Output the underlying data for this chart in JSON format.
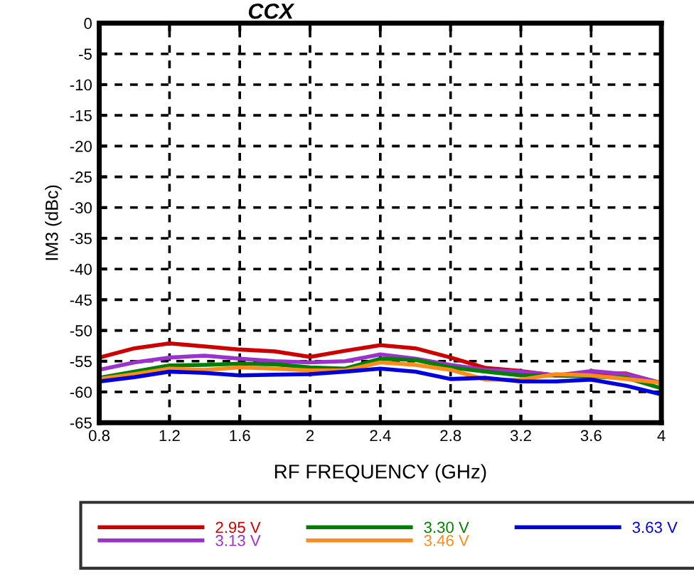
{
  "chart_data": {
    "type": "line",
    "title": "CCX",
    "xlabel": "RF FREQUENCY (GHz)",
    "ylabel": "IM3 (dBc)",
    "x": [
      0.8,
      1.0,
      1.2,
      1.4,
      1.6,
      1.8,
      2.0,
      2.2,
      2.4,
      2.6,
      2.8,
      3.0,
      3.2,
      3.4,
      3.6,
      3.8,
      4.0
    ],
    "series": [
      {
        "name": "2.95 V",
        "color": "#cc0000",
        "values": [
          -54.4,
          -52.9,
          -52.1,
          -52.6,
          -53.1,
          -53.4,
          -54.3,
          -53.3,
          -52.4,
          -52.9,
          -54.4,
          -56.1,
          -56.6,
          -57.3,
          -57.0,
          -57.0,
          -58.6
        ]
      },
      {
        "name": "3.13 V",
        "color": "#9933cc",
        "values": [
          -56.4,
          -55.2,
          -54.4,
          -54.1,
          -54.6,
          -55.0,
          -55.2,
          -55.0,
          -53.9,
          -54.6,
          -55.6,
          -56.4,
          -56.7,
          -57.3,
          -56.6,
          -57.1,
          -58.5
        ]
      },
      {
        "name": "3.30 V",
        "color": "#008000",
        "values": [
          -57.7,
          -56.7,
          -55.7,
          -55.6,
          -55.4,
          -55.5,
          -56.0,
          -56.2,
          -54.6,
          -54.8,
          -56.0,
          -56.7,
          -57.3,
          -57.3,
          -57.5,
          -57.7,
          -59.4
        ]
      },
      {
        "name": "3.46 V",
        "color": "#ff8c1a",
        "values": [
          -57.9,
          -57.1,
          -56.2,
          -56.4,
          -56.0,
          -56.2,
          -56.5,
          -56.5,
          -55.2,
          -55.6,
          -56.4,
          -58.0,
          -58.0,
          -57.1,
          -57.3,
          -57.9,
          -58.5
        ]
      },
      {
        "name": "3.63 V",
        "color": "#0000dd",
        "values": [
          -58.3,
          -57.6,
          -56.7,
          -56.9,
          -57.3,
          -57.2,
          -57.1,
          -56.7,
          -56.2,
          -56.7,
          -57.9,
          -57.7,
          -58.3,
          -58.3,
          -58.0,
          -59.0,
          -60.4
        ]
      }
    ],
    "xlim": [
      0.8,
      4.0
    ],
    "xticks": [
      0.8,
      1.2,
      1.6,
      2,
      2.4,
      2.8,
      3.2,
      3.6,
      4
    ],
    "ylim": [
      -65,
      0
    ],
    "yticks": [
      0,
      -5,
      -10,
      -15,
      -20,
      -25,
      -30,
      -35,
      -40,
      -45,
      -50,
      -55,
      -60,
      -65
    ],
    "grid": true,
    "legend": "bottom",
    "marker": "none",
    "line_style": "solid"
  }
}
